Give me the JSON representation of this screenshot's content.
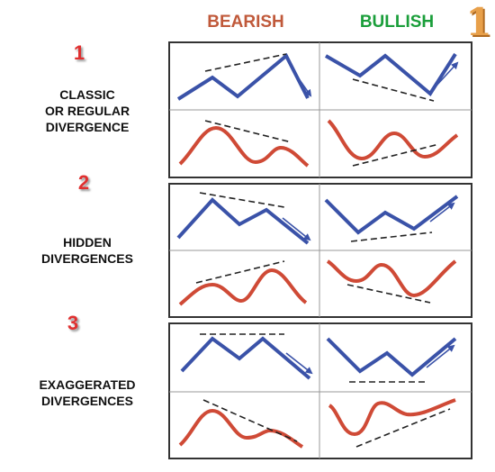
{
  "headers": {
    "bearish": "BEARISH",
    "bullish": "BULLISH"
  },
  "logo_digit": "1",
  "sections": [
    {
      "number": "1",
      "label_lines": [
        "CLASSIC",
        "OR REGULAR",
        "DIVERGENCE"
      ]
    },
    {
      "number": "2",
      "label_lines": [
        "HIDDEN",
        "DIVERGENCES"
      ]
    },
    {
      "number": "3",
      "label_lines": [
        "EXAGGERATED",
        "DIVERGENCES"
      ]
    }
  ],
  "colors": {
    "price_line": "#3a52a8",
    "oscillator_line": "#cf4a36",
    "trend_dash": "#222222",
    "bearish_header": "#c0593a",
    "bullish_header": "#1a9e3a",
    "section_number": "#e03030"
  }
}
